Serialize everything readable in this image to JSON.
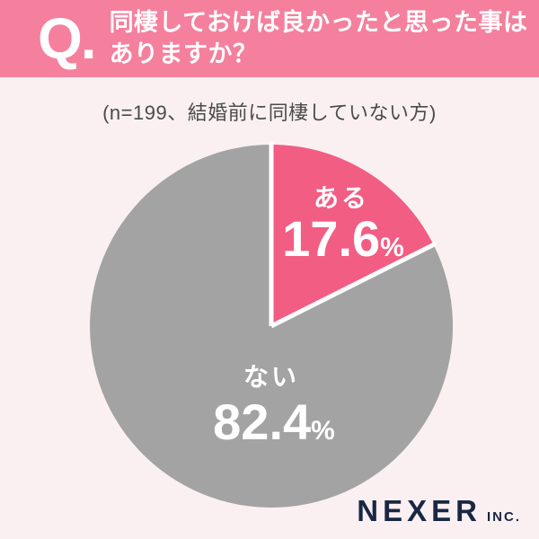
{
  "header": {
    "q_label": "Q.",
    "title_line1": "同棲しておけば良かったと思った事は",
    "title_line2": "ありますか？"
  },
  "subtitle": "(n=199、結婚前に同棲していない方)",
  "chart_data": {
    "type": "pie",
    "title": "同棲しておけば良かったと思った事はありますか？",
    "sample_note": "(n=199、結婚前に同棲していない方)",
    "unit": "%",
    "start_angle_deg": 0,
    "direction": "clockwise",
    "legend_position": "none",
    "slices": [
      {
        "label": "ある",
        "value": 17.6,
        "color": "#F25D83"
      },
      {
        "label": "ない",
        "value": 82.4,
        "color": "#A3A3A3"
      }
    ],
    "separator_color": "#FFFFFF"
  },
  "footer": {
    "brand": "NEXER",
    "suffix": "INC."
  },
  "colors": {
    "page_bg": "#FAF0F2",
    "header_bg": "#F4809D",
    "header_text": "#FFFFFF",
    "subtitle_text": "#4B4B4B",
    "logo_navy": "#1A2744"
  }
}
